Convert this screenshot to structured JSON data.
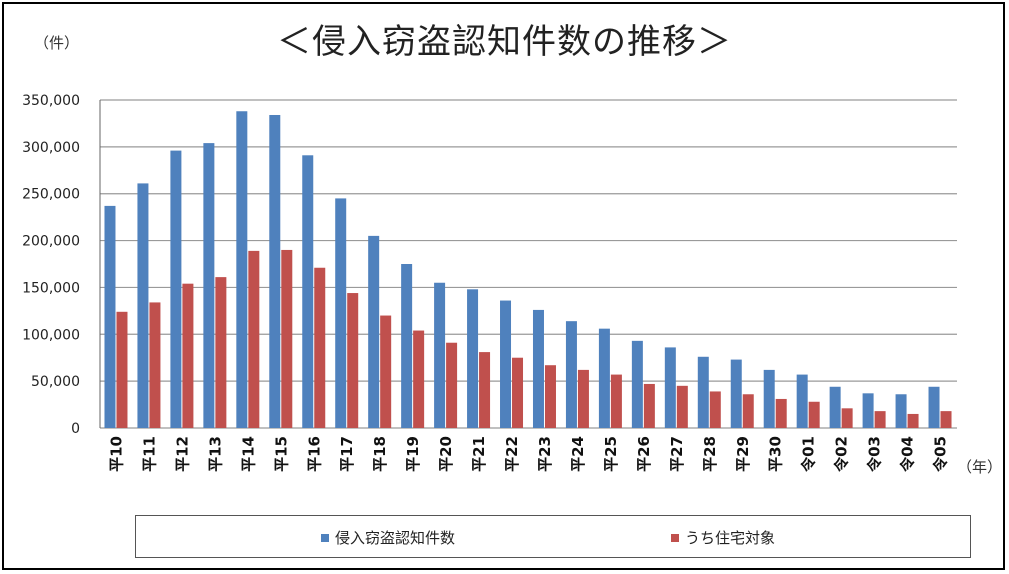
{
  "title": "＜侵入窃盗認知件数の推移＞",
  "y_unit": "（件）",
  "x_unit": "（年）",
  "colors": {
    "series1": "#4f81bd",
    "series2": "#c0504d",
    "grid": "#9a9a9a"
  },
  "chart_data": {
    "type": "bar",
    "ylim": [
      0,
      350000
    ],
    "y_ticks": [
      "0",
      "50,000",
      "100,000",
      "150,000",
      "200,000",
      "250,000",
      "300,000",
      "350,000"
    ],
    "y_tick_values": [
      0,
      50000,
      100000,
      150000,
      200000,
      250000,
      300000,
      350000
    ],
    "grid": true,
    "legend_placement": "bottom",
    "categories": [
      "平10",
      "平11",
      "平12",
      "平13",
      "平14",
      "平15",
      "平16",
      "平17",
      "平18",
      "平19",
      "平20",
      "平21",
      "平22",
      "平23",
      "平24",
      "平25",
      "平26",
      "平27",
      "平28",
      "平29",
      "平30",
      "令01",
      "令02",
      "令03",
      "令04",
      "令05"
    ],
    "series": [
      {
        "name": "侵入窃盗認知件数",
        "values": [
          237000,
          261000,
          296000,
          304000,
          338000,
          334000,
          291000,
          245000,
          205000,
          175000,
          155000,
          148000,
          136000,
          126000,
          114000,
          106000,
          93000,
          86000,
          76000,
          73000,
          62000,
          57000,
          44000,
          37000,
          36000,
          44000
        ]
      },
      {
        "name": "うち住宅対象",
        "values": [
          124000,
          134000,
          154000,
          161000,
          189000,
          190000,
          171000,
          144000,
          120000,
          104000,
          91000,
          81000,
          75000,
          67000,
          62000,
          57000,
          47000,
          45000,
          39000,
          36000,
          31000,
          28000,
          21000,
          18000,
          15000,
          18000
        ]
      }
    ]
  }
}
